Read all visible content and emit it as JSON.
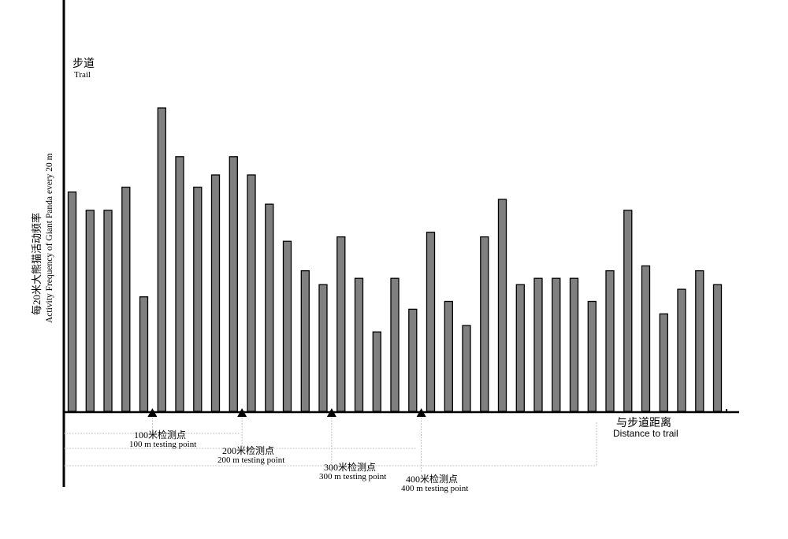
{
  "chart_data": {
    "type": "bar",
    "title": "",
    "ylabel_cn": "每20米大熊猫活动频率",
    "ylabel_en": "Activity Frequency of Giant Panda every 20 m",
    "xlabel_cn": "与步道距离",
    "xlabel_en": "Distance to trail",
    "origin_label_cn": "步道",
    "origin_label_en": "Trail",
    "values": [
      9.0,
      8.25,
      8.25,
      9.2,
      4.7,
      12.45,
      10.45,
      9.2,
      9.7,
      10.45,
      9.7,
      8.5,
      6.98,
      5.77,
      5.2,
      7.16,
      5.46,
      3.26,
      5.46,
      4.19,
      7.35,
      4.51,
      3.52,
      7.16,
      8.7,
      5.2,
      5.46,
      5.46,
      5.46,
      4.51,
      5.77,
      8.25,
      5.97,
      4.0,
      5.01,
      5.77,
      5.2
    ],
    "bar_color": "#808080",
    "ylim": [
      0,
      16.6
    ],
    "grid": false,
    "testing_points": [
      {
        "after_bar": 5,
        "label_cn": "100米检测点",
        "label_en": "100 m testing point"
      },
      {
        "after_bar": 10,
        "label_cn": "200米检测点",
        "label_en": "200 m testing point"
      },
      {
        "after_bar": 15,
        "label_cn": "300米检测点",
        "label_en": "300 m testing point"
      },
      {
        "after_bar": 20,
        "label_cn": "400米检测点",
        "label_en": "400 m testing point"
      }
    ]
  }
}
